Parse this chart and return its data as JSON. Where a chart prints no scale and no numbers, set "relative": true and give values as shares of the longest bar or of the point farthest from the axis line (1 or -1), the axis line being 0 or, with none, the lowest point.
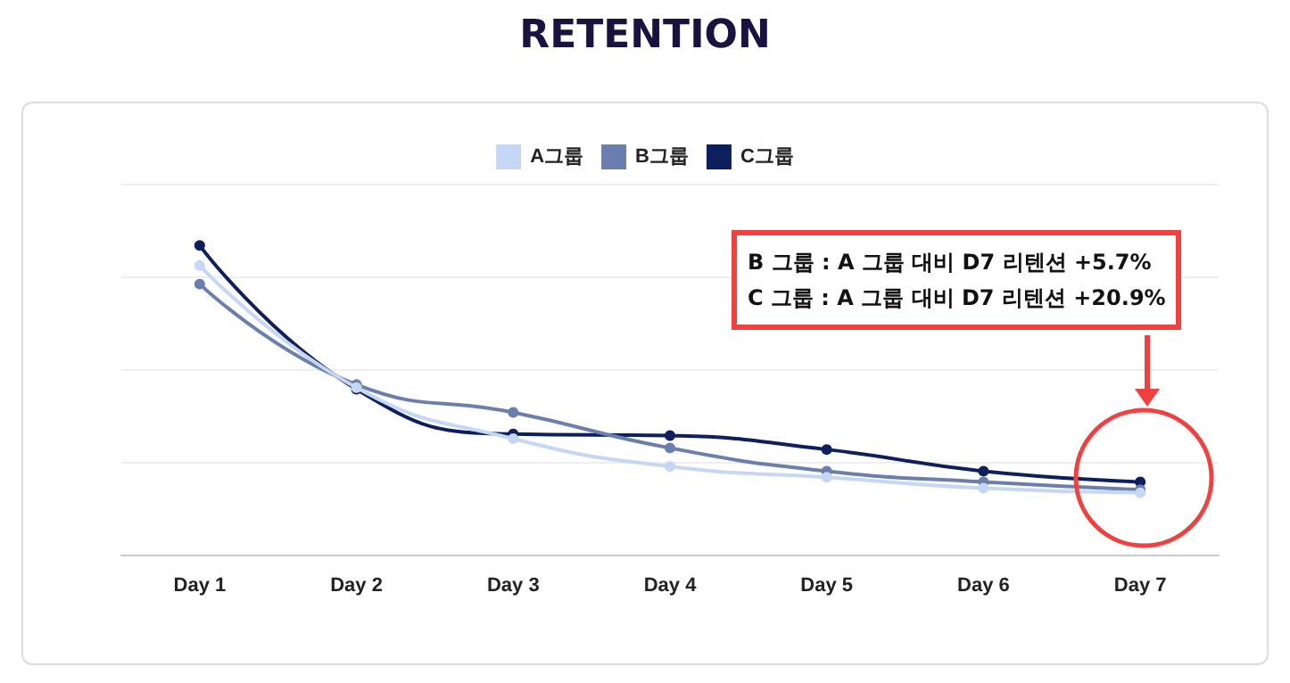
{
  "chart_data": {
    "type": "line",
    "title": "RETENTION",
    "relative": true,
    "categories": [
      "Day 1",
      "Day 2",
      "Day 3",
      "Day 4",
      "Day 5",
      "Day 6",
      "Day 7"
    ],
    "series": [
      {
        "name": "A그룹",
        "color": "#c6d6f5",
        "values": [
          0.935,
          0.54,
          0.375,
          0.285,
          0.25,
          0.215,
          0.2
        ]
      },
      {
        "name": "B그룹",
        "color": "#6b7fae",
        "values": [
          0.875,
          0.55,
          0.46,
          0.345,
          0.27,
          0.235,
          0.21
        ]
      },
      {
        "name": "C그룹",
        "color": "#0d1f5c",
        "values": [
          1,
          0.535,
          0.39,
          0.385,
          0.34,
          0.27,
          0.235
        ]
      }
    ],
    "annotations": [
      "B 그룹 : A 그룹 대비 D7 리텐션 +5.7%",
      "C 그룹 : A 그룹 대비 D7 리텐션 +20.9%"
    ],
    "grid": "y",
    "legend": "top",
    "marker": "circle",
    "line_style": "solid"
  }
}
